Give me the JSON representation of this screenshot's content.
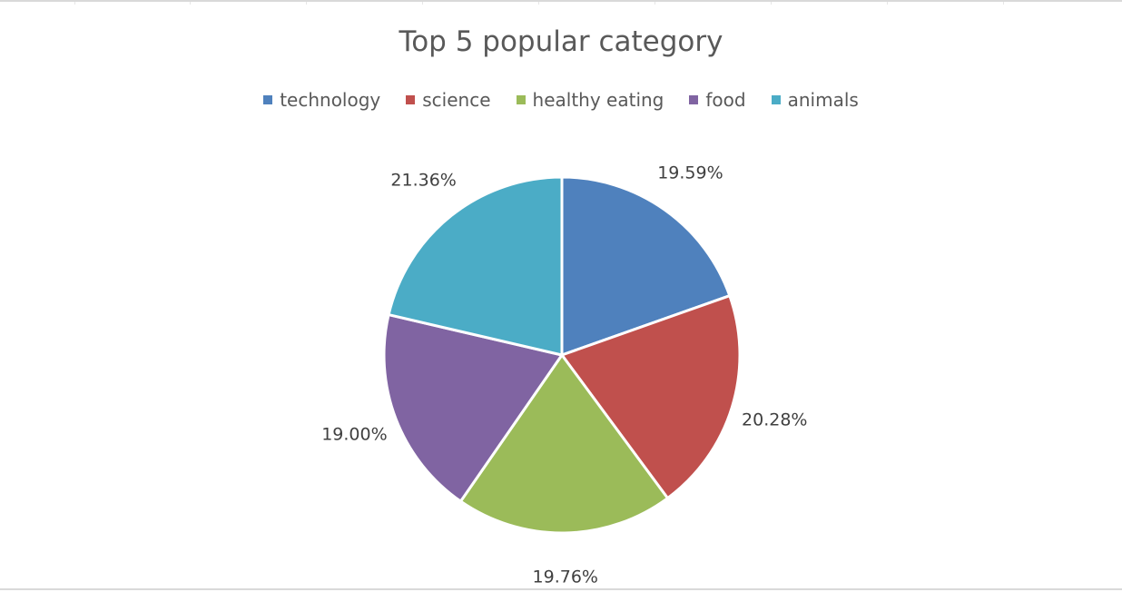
{
  "chart_data": {
    "type": "pie",
    "title": "Top 5 popular category",
    "legend_position": "top",
    "categories": [
      "technology",
      "science",
      "healthy eating",
      "food",
      "animals"
    ],
    "values": [
      19.59,
      20.28,
      19.76,
      19.0,
      21.36
    ],
    "value_labels": [
      "19.59%",
      "20.28%",
      "19.76%",
      "19.00%",
      "21.36%"
    ],
    "colors": [
      "#4f81bd",
      "#c0504d",
      "#9bbb59",
      "#8064a2",
      "#4bacc6"
    ]
  }
}
